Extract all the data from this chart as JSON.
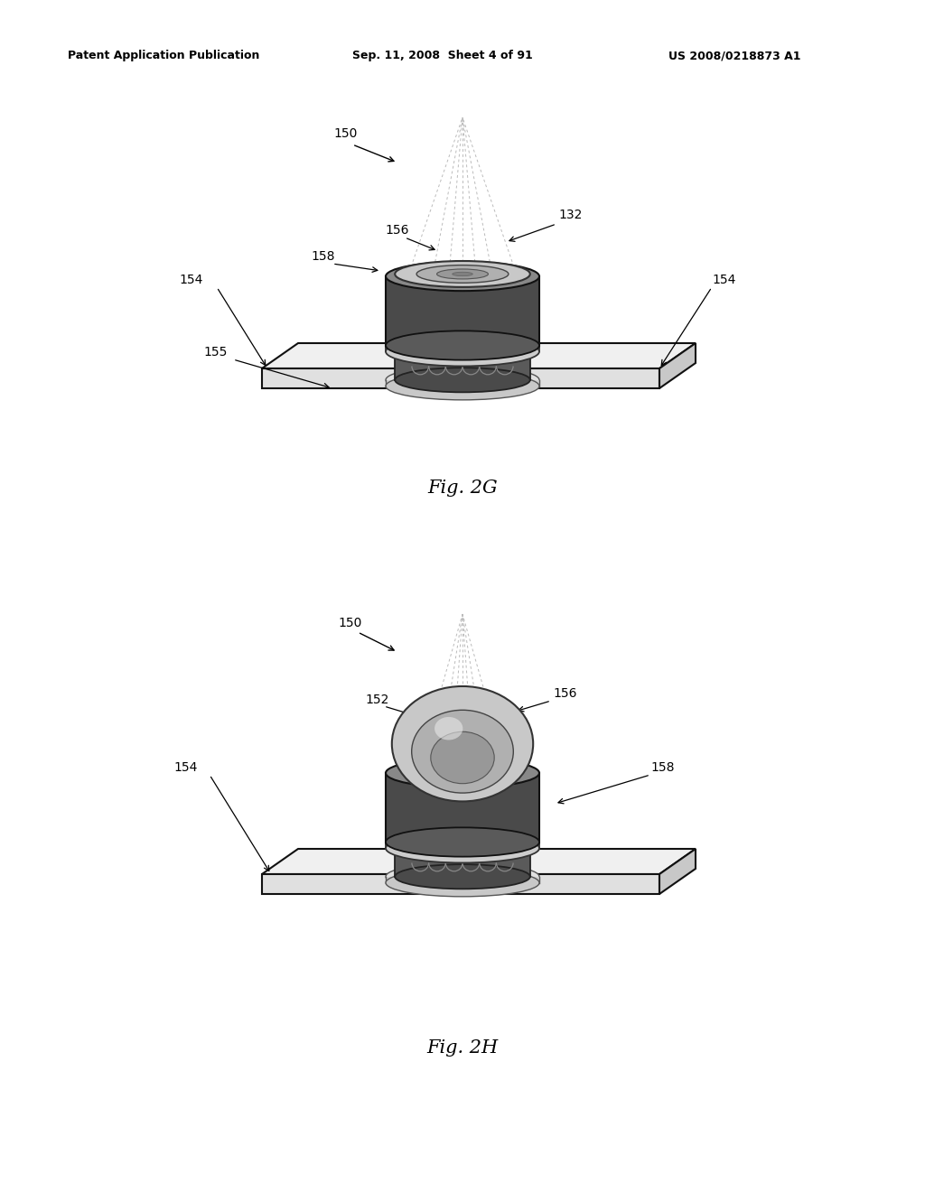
{
  "bg_color": "#ffffff",
  "header_text": "Patent Application Publication",
  "header_date": "Sep. 11, 2008  Sheet 4 of 91",
  "header_patent": "US 2008/0218873 A1",
  "fig2g_label": "Fig. 2G",
  "fig2h_label": "Fig. 2H"
}
